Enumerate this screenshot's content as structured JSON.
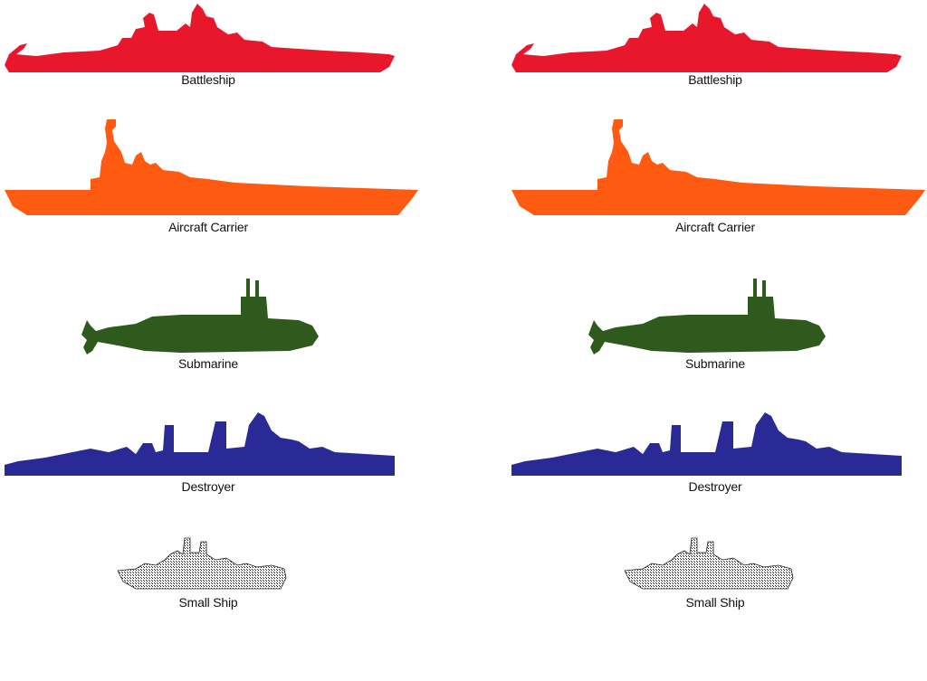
{
  "ships": [
    {
      "key": "battleship",
      "label": "Battleship",
      "color": "#e8172b",
      "icon": "battleship-icon"
    },
    {
      "key": "aircraft_carrier",
      "label": "Aircraft Carrier",
      "color": "#ff5a12",
      "icon": "aircraft-carrier-icon"
    },
    {
      "key": "submarine",
      "label": "Submarine",
      "color": "#2f5a1e",
      "icon": "submarine-icon"
    },
    {
      "key": "destroyer",
      "label": "Destroyer",
      "color": "#2a2a96",
      "icon": "destroyer-icon"
    },
    {
      "key": "small_ship",
      "label": "Small Ship",
      "color": "#111111",
      "icon": "small-ship-icon"
    }
  ]
}
